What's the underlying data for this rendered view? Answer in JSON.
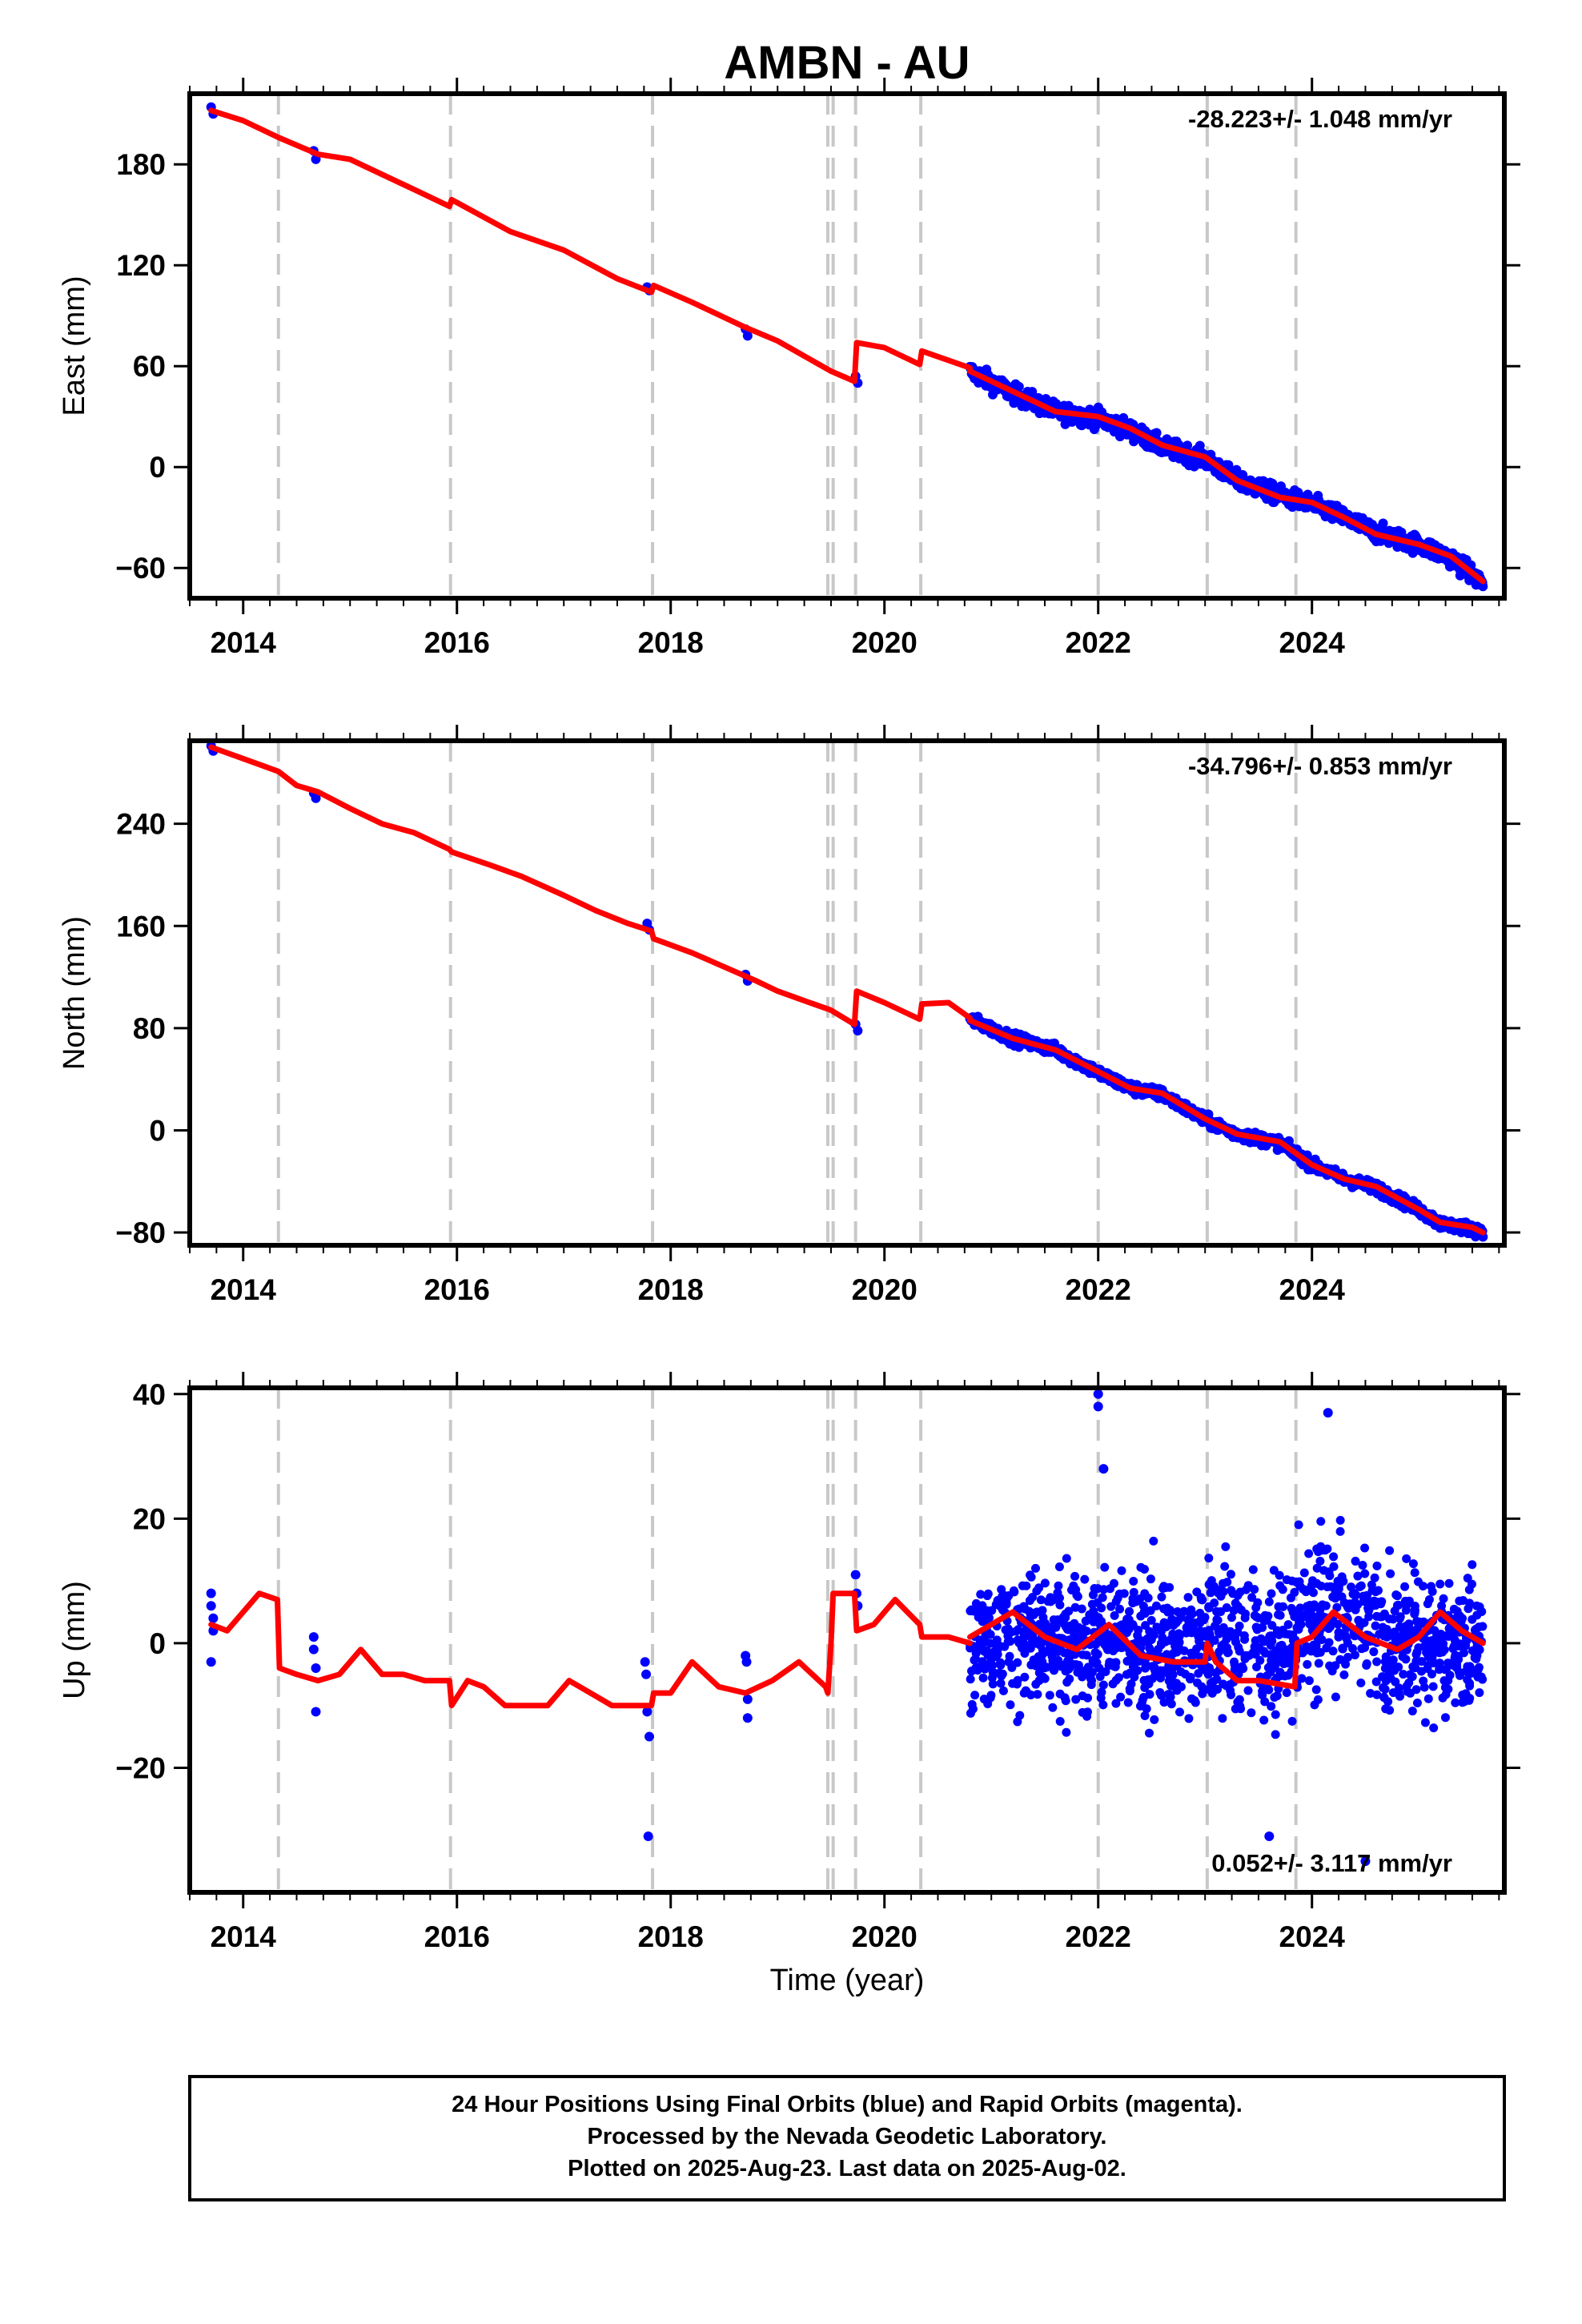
{
  "colors": {
    "observations": "#0000ff",
    "model": "#ff0000",
    "breaks": "#c8c8c8",
    "frame": "#000000"
  },
  "chart_data": [
    {
      "type": "scatter",
      "title": "AMBN - AU",
      "xlabel": "",
      "ylabel": "East (mm)",
      "xlim": [
        2013.5,
        2025.8
      ],
      "ylim": [
        -78,
        222
      ],
      "yticks": [
        -60,
        0,
        60,
        120,
        180
      ],
      "xticks": [
        2014,
        2016,
        2018,
        2020,
        2022,
        2024
      ],
      "rate_label": "-28.223+/- 1.048 mm/yr",
      "rate_position": "top-right",
      "grid": false,
      "break_lines": [
        2014.33,
        2015.94,
        2017.83,
        2019.47,
        2019.52,
        2019.73,
        2020.34,
        2022.0,
        2023.02,
        2023.85
      ],
      "series": [
        {
          "role": "observations",
          "x": [
            2013.7,
            2013.72,
            2014.66,
            2014.68,
            2017.78,
            2017.8,
            2018.7,
            2018.72,
            2019.73,
            2019.75
          ],
          "y": [
            214,
            210,
            188,
            183,
            107,
            105,
            82,
            78,
            54,
            50
          ]
        },
        {
          "role": "model",
          "x": [
            2013.7,
            2014.0,
            2014.33,
            2014.7,
            2015.0,
            2015.5,
            2015.93,
            2015.95,
            2016.5,
            2017.0,
            2017.5,
            2017.82,
            2017.84,
            2018.2,
            2018.7,
            2019.0,
            2019.5,
            2019.72,
            2019.74,
            2020.0,
            2020.33,
            2020.35,
            2020.8
          ],
          "y": [
            212,
            206,
            196,
            186,
            183,
            168,
            155,
            159,
            140,
            129,
            112,
            104,
            108,
            98,
            83,
            75,
            57,
            51,
            74,
            71,
            61,
            69,
            59
          ]
        },
        {
          "role": "observations-band",
          "x": [
            2020.8,
            2021.2,
            2021.6,
            2022.0,
            2022.3,
            2022.6,
            2023.0,
            2023.3,
            2023.7,
            2024.0,
            2024.3,
            2024.6,
            2025.0,
            2025.3,
            2025.6
          ],
          "y": [
            57,
            44,
            33,
            29,
            22,
            12,
            5,
            -8,
            -17,
            -22,
            -30,
            -39,
            -46,
            -54,
            -69
          ],
          "spread": 6
        },
        {
          "role": "model",
          "x": [
            2020.8,
            2021.2,
            2021.6,
            2022.0,
            2022.3,
            2022.6,
            2023.0,
            2023.3,
            2023.7,
            2024.0,
            2024.3,
            2024.6,
            2025.0,
            2025.3,
            2025.6
          ],
          "y": [
            57,
            45,
            33,
            30,
            23,
            13,
            6,
            -8,
            -18,
            -21,
            -30,
            -40,
            -46,
            -53,
            -68
          ]
        }
      ]
    },
    {
      "type": "scatter",
      "title": "",
      "xlabel": "",
      "ylabel": "North (mm)",
      "xlim": [
        2013.5,
        2025.8
      ],
      "ylim": [
        -90,
        305
      ],
      "yticks": [
        -80,
        0,
        80,
        160,
        240
      ],
      "xticks": [
        2014,
        2016,
        2018,
        2020,
        2022,
        2024
      ],
      "rate_label": "-34.796+/- 0.853 mm/yr",
      "rate_position": "top-right",
      "grid": false,
      "break_lines": [
        2014.33,
        2015.94,
        2017.83,
        2019.47,
        2019.52,
        2019.73,
        2020.34,
        2022.0,
        2023.02,
        2023.85
      ],
      "series": [
        {
          "role": "observations",
          "x": [
            2013.7,
            2013.72,
            2014.66,
            2014.68,
            2017.78,
            2017.8,
            2018.7,
            2018.72,
            2019.73,
            2019.75
          ],
          "y": [
            301,
            297,
            264,
            260,
            162,
            157,
            122,
            117,
            83,
            78
          ]
        },
        {
          "role": "model",
          "x": [
            2013.7,
            2014.0,
            2014.33,
            2014.5,
            2014.7,
            2015.0,
            2015.3,
            2015.6,
            2015.93,
            2015.95,
            2016.3,
            2016.6,
            2017.0,
            2017.3,
            2017.6,
            2017.82,
            2017.84,
            2018.2,
            2018.5,
            2018.8,
            2019.0,
            2019.3,
            2019.47,
            2019.5,
            2019.72,
            2019.74,
            2020.0,
            2020.33,
            2020.35,
            2020.6,
            2020.8
          ],
          "y": [
            300,
            291,
            281,
            270,
            265,
            252,
            240,
            233,
            220,
            218,
            208,
            199,
            184,
            172,
            162,
            156,
            150,
            139,
            128,
            117,
            109,
            100,
            95,
            94,
            83,
            109,
            100,
            87,
            99,
            100,
            88
          ]
        },
        {
          "role": "observations-band",
          "x": [
            2020.8,
            2021.2,
            2021.6,
            2022.0,
            2022.3,
            2022.6,
            2023.0,
            2023.3,
            2023.7,
            2024.0,
            2024.3,
            2024.6,
            2025.0,
            2025.2,
            2025.5,
            2025.6
          ],
          "y": [
            87,
            72,
            63,
            45,
            33,
            28,
            8,
            -3,
            -10,
            -27,
            -38,
            -45,
            -62,
            -73,
            -77,
            -80
          ],
          "spread": 5
        },
        {
          "role": "model",
          "x": [
            2020.8,
            2021.2,
            2021.6,
            2022.0,
            2022.3,
            2022.6,
            2023.0,
            2023.3,
            2023.7,
            2024.0,
            2024.3,
            2024.6,
            2025.0,
            2025.2,
            2025.5,
            2025.6
          ],
          "y": [
            86,
            72,
            63,
            46,
            33,
            29,
            9,
            -3,
            -9,
            -27,
            -38,
            -44,
            -62,
            -72,
            -76,
            -80
          ]
        }
      ]
    },
    {
      "type": "scatter",
      "title": "",
      "xlabel": "Time (year)",
      "ylabel": "Up (mm)",
      "xlim": [
        2013.5,
        2025.8
      ],
      "ylim": [
        -40,
        41
      ],
      "yticks": [
        -20,
        0,
        20,
        40
      ],
      "xticks": [
        2014,
        2016,
        2018,
        2020,
        2022,
        2024
      ],
      "rate_label": "0.052+/- 3.117 mm/yr",
      "rate_position": "bottom-right",
      "grid": false,
      "break_lines": [
        2014.33,
        2015.94,
        2017.83,
        2019.47,
        2019.52,
        2019.73,
        2020.34,
        2022.0,
        2023.02,
        2023.85
      ],
      "series": [
        {
          "role": "observations",
          "x": [
            2013.7,
            2013.7,
            2013.72,
            2013.72,
            2013.7,
            2014.66,
            2014.66,
            2014.68,
            2014.68,
            2017.76,
            2017.77,
            2017.78,
            2017.8,
            2017.79,
            2018.7,
            2018.71,
            2018.72,
            2018.72,
            2019.73,
            2019.74,
            2019.75
          ],
          "y": [
            8,
            6,
            4,
            2,
            -3,
            1,
            -1,
            -4,
            -11,
            -3,
            -5,
            -11,
            -15,
            -31,
            -2,
            -3,
            -9,
            -12,
            11,
            8,
            6
          ]
        },
        {
          "role": "model",
          "x": [
            2013.7,
            2013.85,
            2014.0,
            2014.15,
            2014.32,
            2014.34,
            2014.5,
            2014.7,
            2014.9,
            2015.1,
            2015.3,
            2015.5,
            2015.7,
            2015.93,
            2015.95,
            2016.1,
            2016.25,
            2016.45,
            2016.65,
            2016.85,
            2017.05,
            2017.25,
            2017.45,
            2017.65,
            2017.82,
            2017.84,
            2018.0,
            2018.2,
            2018.45,
            2018.7,
            2018.95,
            2019.2,
            2019.45,
            2019.47,
            2019.5,
            2019.52,
            2019.72,
            2019.74,
            2019.9,
            2020.1,
            2020.33,
            2020.35,
            2020.6,
            2020.8
          ],
          "y": [
            3,
            2,
            5,
            8,
            7,
            -4,
            -5,
            -6,
            -5,
            -1,
            -5,
            -5,
            -6,
            -6,
            -10,
            -6,
            -7,
            -10,
            -10,
            -10,
            -6,
            -8,
            -10,
            -10,
            -10,
            -8,
            -8,
            -3,
            -7,
            -8,
            -6,
            -3,
            -7,
            -8,
            0,
            8,
            8,
            2,
            3,
            7,
            3,
            1,
            1,
            0
          ]
        },
        {
          "role": "observations-cloud",
          "x": [
            2020.8,
            2025.6
          ],
          "y": [
            0,
            0
          ],
          "spread": 9
        },
        {
          "role": "observations",
          "x": [
            2022.0,
            2022.0,
            2022.05,
            2024.15,
            2023.6,
            2024.5
          ],
          "y": [
            40,
            38,
            28,
            37,
            -31,
            -35
          ]
        },
        {
          "role": "model",
          "x": [
            2020.8,
            2021.0,
            2021.2,
            2021.5,
            2021.8,
            2022.1,
            2022.4,
            2022.7,
            2023.0,
            2023.02,
            2023.1,
            2023.3,
            2023.5,
            2023.84,
            2023.86,
            2024.0,
            2024.2,
            2024.5,
            2024.8,
            2025.0,
            2025.2,
            2025.4,
            2025.6
          ],
          "y": [
            1,
            3,
            5,
            1,
            -1,
            3,
            -2,
            -3,
            -3,
            0,
            -3,
            -6,
            -6,
            -7,
            0,
            1,
            5,
            1,
            -1,
            1,
            5,
            2,
            0
          ]
        }
      ]
    }
  ],
  "footer": {
    "line1": "24 Hour Positions Using Final Orbits (blue) and Rapid Orbits (magenta).",
    "line2": "Processed by the Nevada Geodetic Laboratory.",
    "line3": "Plotted on 2025-Aug-23. Last data on 2025-Aug-02."
  }
}
